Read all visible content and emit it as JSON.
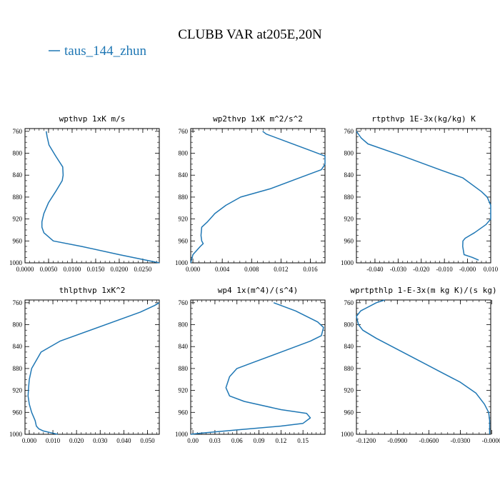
{
  "figure": {
    "title": "CLUBB VAR at205E,20N",
    "legend": [
      {
        "label": "taus_144_zhun",
        "color": "#1f77b4"
      }
    ]
  },
  "chart_data": [
    {
      "type": "line",
      "title": "wpthvp  1xK m/s",
      "xlim": [
        0.0,
        0.0285
      ],
      "ylim": [
        1000,
        755
      ],
      "xticks": [
        0.0,
        0.005,
        0.01,
        0.015,
        0.02,
        0.025
      ],
      "xtick_labels": [
        "0.0000",
        "0.0050",
        "0.0100",
        "0.0150",
        "0.0200",
        "0.0250"
      ],
      "yticks": [
        760,
        800,
        840,
        880,
        920,
        960,
        1000
      ],
      "ytick_labels": [
        "760",
        "800",
        "840",
        "880",
        "920",
        "960",
        "1000"
      ],
      "series": [
        {
          "name": "taus_144_zhun",
          "x": [
            0.0045,
            0.0047,
            0.0051,
            0.0065,
            0.008,
            0.0081,
            0.0079,
            0.0065,
            0.005,
            0.004,
            0.0036,
            0.0036,
            0.004,
            0.006,
            0.012,
            0.02,
            0.0285
          ],
          "y": [
            760,
            770,
            785,
            805,
            825,
            840,
            850,
            870,
            890,
            910,
            925,
            935,
            945,
            960,
            970,
            985,
            1000
          ]
        }
      ]
    },
    {
      "type": "line",
      "title": "wp2thvp  1xK m^2/s^2",
      "xlim": [
        -0.0003,
        0.018
      ],
      "ylim": [
        1000,
        755
      ],
      "xticks": [
        0.0,
        0.004,
        0.008,
        0.012,
        0.016
      ],
      "xtick_labels": [
        "0.000",
        "0.004",
        "0.008",
        "0.012",
        "0.016"
      ],
      "yticks": [
        760,
        800,
        840,
        880,
        920,
        960,
        1000
      ],
      "ytick_labels": [
        "760",
        "800",
        "840",
        "880",
        "920",
        "960",
        "1000"
      ],
      "series": [
        {
          "name": "taus_144_zhun",
          "x": [
            0.0095,
            0.01,
            0.013,
            0.016,
            0.018,
            0.018,
            0.0175,
            0.0145,
            0.0105,
            0.0065,
            0.0045,
            0.003,
            0.002,
            0.0012,
            0.0011,
            0.0012,
            0.0014,
            0.001,
            0.0,
            -0.0003
          ],
          "y": [
            760,
            765,
            780,
            795,
            805,
            820,
            830,
            845,
            865,
            880,
            895,
            910,
            925,
            935,
            950,
            960,
            965,
            970,
            985,
            1000
          ]
        }
      ]
    },
    {
      "type": "line",
      "title": "rtpthvp  1E-3x(kg/kg) K",
      "xlim": [
        -0.048,
        0.01
      ],
      "ylim": [
        1000,
        755
      ],
      "xticks": [
        -0.04,
        -0.03,
        -0.02,
        -0.01,
        0.0,
        0.01
      ],
      "xtick_labels": [
        "-0.040",
        "-0.030",
        "-0.020",
        "-0.010",
        "-0.000",
        "0.010"
      ],
      "yticks": [
        760,
        800,
        840,
        880,
        920,
        960,
        1000
      ],
      "ytick_labels": [
        "760",
        "800",
        "840",
        "880",
        "920",
        "960",
        "1000"
      ],
      "series": [
        {
          "name": "taus_144_zhun",
          "x": [
            -0.048,
            -0.046,
            -0.043,
            -0.028,
            -0.012,
            -0.002,
            0.006,
            0.0085,
            0.01,
            0.01,
            0.008,
            0.003,
            0.001,
            -0.001,
            -0.002,
            -0.0021,
            -0.0015,
            0.002,
            0.0048
          ],
          "y": [
            760,
            772,
            783,
            805,
            830,
            845,
            870,
            880,
            895,
            920,
            930,
            945,
            950,
            955,
            960,
            970,
            985,
            990,
            995
          ]
        }
      ]
    },
    {
      "type": "line",
      "title": "thlpthvp  1xK^2",
      "xlim": [
        -0.0018,
        0.055
      ],
      "ylim": [
        1000,
        755
      ],
      "xticks": [
        0.0,
        0.01,
        0.02,
        0.03,
        0.04,
        0.05
      ],
      "xtick_labels": [
        "0.000",
        "0.010",
        "0.020",
        "0.030",
        "0.040",
        "0.050"
      ],
      "yticks": [
        760,
        800,
        840,
        880,
        920,
        960,
        1000
      ],
      "ytick_labels": [
        "760",
        "800",
        "840",
        "880",
        "920",
        "960",
        "1000"
      ],
      "series": [
        {
          "name": "taus_144_zhun",
          "x": [
            0.055,
            0.053,
            0.047,
            0.013,
            0.005,
            0.003,
            0.001,
            0.0,
            -0.0003,
            -0.0005,
            0.0,
            0.001,
            0.0025,
            0.003,
            0.004,
            0.006,
            0.009,
            0.012
          ],
          "y": [
            760,
            765,
            777,
            830,
            850,
            865,
            880,
            900,
            915,
            930,
            945,
            960,
            975,
            985,
            990,
            994,
            997,
            1000
          ]
        }
      ]
    },
    {
      "type": "line",
      "title": "wp4  1x(m^4)/(s^4)",
      "xlim": [
        -0.003,
        0.18
      ],
      "ylim": [
        1000,
        755
      ],
      "xticks": [
        0.0,
        0.03,
        0.06,
        0.09,
        0.12,
        0.15
      ],
      "xtick_labels": [
        "0.00",
        "0.03",
        "0.06",
        "0.09",
        "0.12",
        "0.15"
      ],
      "yticks": [
        760,
        800,
        840,
        880,
        920,
        960,
        1000
      ],
      "ytick_labels": [
        "760",
        "800",
        "840",
        "880",
        "920",
        "960",
        "1000"
      ],
      "series": [
        {
          "name": "taus_144_zhun",
          "x": [
            0.11,
            0.14,
            0.17,
            0.178,
            0.175,
            0.16,
            0.12,
            0.08,
            0.06,
            0.05,
            0.045,
            0.05,
            0.07,
            0.12,
            0.155,
            0.16,
            0.15,
            0.12,
            0.06,
            0.01,
            -0.003
          ],
          "y": [
            760,
            775,
            795,
            805,
            820,
            830,
            850,
            870,
            880,
            895,
            915,
            930,
            940,
            955,
            962,
            970,
            980,
            985,
            992,
            998,
            1000
          ]
        }
      ]
    },
    {
      "type": "line",
      "title": "wprtpthlp  1-E-3x(m kg K)/(s kg)",
      "xlim": [
        -0.129,
        -0.001
      ],
      "ylim": [
        1000,
        755
      ],
      "xticks": [
        -0.12,
        -0.09,
        -0.06,
        -0.03,
        0.0
      ],
      "xtick_labels": [
        "-0.1200",
        "-0.0900",
        "-0.0600",
        "-0.0300",
        "-0.0000"
      ],
      "yticks": [
        760,
        800,
        840,
        880,
        920,
        960,
        1000
      ],
      "ytick_labels": [
        "760",
        "800",
        "840",
        "880",
        "920",
        "960",
        "1000"
      ],
      "series": [
        {
          "name": "taus_144_zhun",
          "x": [
            -0.102,
            -0.11,
            -0.125,
            -0.129,
            -0.127,
            -0.123,
            -0.11,
            -0.09,
            -0.07,
            -0.05,
            -0.03,
            -0.015,
            -0.007,
            -0.003,
            -0.002,
            -0.002
          ],
          "y": [
            755,
            760,
            775,
            785,
            800,
            810,
            825,
            845,
            865,
            885,
            905,
            925,
            945,
            960,
            975,
            1000
          ]
        }
      ]
    }
  ]
}
